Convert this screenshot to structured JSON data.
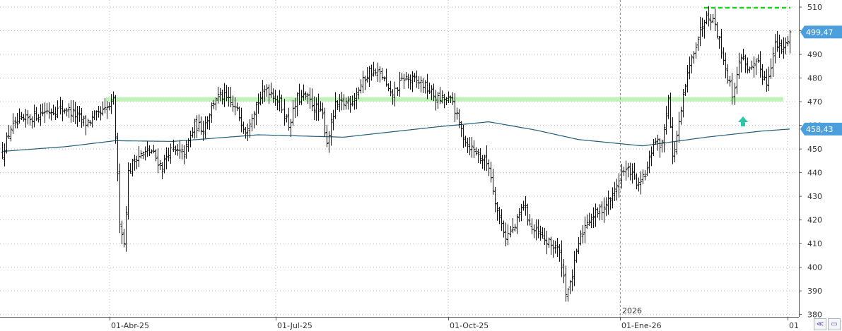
{
  "chart_data": {
    "type": "ohlc",
    "x_ticks": [
      "01-Abr-25",
      "01-Jul-25",
      "01-Oct-25",
      "01-Ene-26",
      "01"
    ],
    "year_marker": "2026",
    "y_ticks": [
      380,
      390,
      400,
      410,
      420,
      430,
      440,
      450,
      460,
      470,
      480,
      490,
      500,
      510
    ],
    "y_tick_labels": [
      "380",
      "390",
      "400",
      "410",
      "420",
      "430",
      "440",
      "450",
      "460",
      "470",
      "480",
      "490",
      "500",
      "510"
    ],
    "ylim": [
      379,
      513
    ],
    "last_price": 499.47,
    "last_price_label": "499,47",
    "moving_average_last": 458.43,
    "moving_average_label": "458,43",
    "support_level": 471,
    "resistance_level": 510,
    "grid": true,
    "price_anchors": [
      [
        0,
        448
      ],
      [
        4,
        459
      ],
      [
        10,
        462
      ],
      [
        20,
        466
      ],
      [
        30,
        467
      ],
      [
        39,
        461
      ],
      [
        48,
        466
      ],
      [
        52,
        470
      ],
      [
        53,
        456
      ],
      [
        55,
        420
      ],
      [
        57,
        410
      ],
      [
        59,
        440
      ],
      [
        63,
        447
      ],
      [
        70,
        449
      ],
      [
        75,
        442
      ],
      [
        78,
        449
      ],
      [
        85,
        448
      ],
      [
        90,
        460
      ],
      [
        94,
        459
      ],
      [
        100,
        472
      ],
      [
        104,
        472
      ],
      [
        110,
        466
      ],
      [
        114,
        458
      ],
      [
        118,
        467
      ],
      [
        124,
        476
      ],
      [
        130,
        470
      ],
      [
        134,
        460
      ],
      [
        138,
        471
      ],
      [
        142,
        472
      ],
      [
        150,
        464
      ],
      [
        152,
        453
      ],
      [
        156,
        468
      ],
      [
        164,
        471
      ],
      [
        172,
        483
      ],
      [
        178,
        481
      ],
      [
        182,
        472
      ],
      [
        188,
        480
      ],
      [
        196,
        478
      ],
      [
        204,
        471
      ],
      [
        208,
        471
      ],
      [
        211,
        470
      ],
      [
        214,
        460
      ],
      [
        218,
        452
      ],
      [
        223,
        448
      ],
      [
        228,
        443
      ],
      [
        232,
        424
      ],
      [
        236,
        413
      ],
      [
        240,
        417
      ],
      [
        244,
        427
      ],
      [
        248,
        416
      ],
      [
        252,
        413
      ],
      [
        256,
        410
      ],
      [
        260,
        408
      ],
      [
        262,
        402
      ],
      [
        264,
        390
      ],
      [
        266,
        392
      ],
      [
        268,
        401
      ],
      [
        270,
        410
      ],
      [
        274,
        420
      ],
      [
        280,
        424
      ],
      [
        286,
        430
      ],
      [
        290,
        440
      ],
      [
        294,
        441
      ],
      [
        298,
        434
      ],
      [
        302,
        441
      ],
      [
        305,
        453
      ],
      [
        309,
        452
      ],
      [
        312,
        473
      ],
      [
        314,
        446
      ],
      [
        317,
        460
      ],
      [
        320,
        477
      ],
      [
        324,
        492
      ],
      [
        330,
        508
      ],
      [
        334,
        503
      ],
      [
        337,
        492
      ],
      [
        342,
        473
      ],
      [
        346,
        490
      ],
      [
        350,
        483
      ],
      [
        354,
        486
      ],
      [
        358,
        478
      ],
      [
        362,
        494
      ],
      [
        366,
        492
      ],
      [
        369,
        499.47
      ]
    ],
    "ma_anchors": [
      [
        0,
        449
      ],
      [
        30,
        451
      ],
      [
        53,
        453.5
      ],
      [
        80,
        453.2
      ],
      [
        120,
        456
      ],
      [
        160,
        455
      ],
      [
        200,
        459
      ],
      [
        228,
        461.5
      ],
      [
        250,
        458
      ],
      [
        270,
        454
      ],
      [
        300,
        451.3
      ],
      [
        330,
        455
      ],
      [
        355,
        457.5
      ],
      [
        369,
        458.43
      ]
    ],
    "bar_count": 370
  },
  "colors": {
    "price_bars": "#111111",
    "moving_average": "#1f5c79",
    "support_band": "#bff2b6",
    "resistance_line": "#19d419",
    "arrow": "#2fc6a8",
    "badge": "#4c9fdd",
    "grid": "#bcbcbc"
  },
  "icons": [
    "up-arrow-icon",
    "axis-toggle-icon",
    "save-icon"
  ]
}
